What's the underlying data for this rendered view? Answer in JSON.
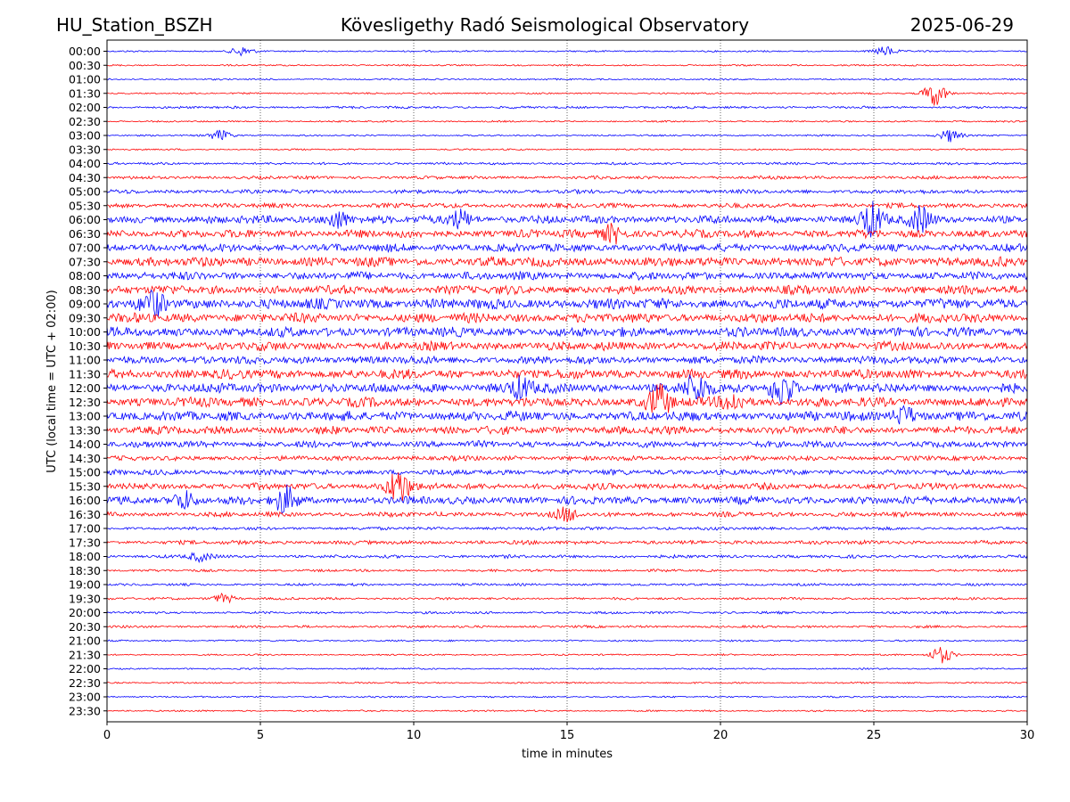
{
  "header": {
    "station": "HU_Station_BSZH",
    "observatory": "Kövesligethy Radó Seismological Observatory",
    "date": "2025-06-29"
  },
  "chart_data": {
    "type": "line",
    "title": "Kövesligethy Radó Seismological Observatory",
    "xlabel": "time in minutes",
    "ylabel": "UTC (local time = UTC + 02:00)",
    "xlim": [
      0,
      30
    ],
    "x_ticks": [
      0,
      5,
      10,
      15,
      20,
      25,
      30
    ],
    "x_tick_labels": [
      "0",
      "5",
      "10",
      "15",
      "20",
      "25",
      "30"
    ],
    "grid": "vertical dotted lines at 5-minute ticks",
    "trace_colors": [
      "#0000ff",
      "#ff0000"
    ],
    "frame_color": "#000000",
    "rows": [
      "00:00",
      "00:30",
      "01:00",
      "01:30",
      "02:00",
      "02:30",
      "03:00",
      "03:30",
      "04:00",
      "04:30",
      "05:00",
      "05:30",
      "06:00",
      "06:30",
      "07:00",
      "07:30",
      "08:00",
      "08:30",
      "09:00",
      "09:30",
      "10:00",
      "10:30",
      "11:00",
      "11:30",
      "12:00",
      "12:30",
      "13:00",
      "13:30",
      "14:00",
      "14:30",
      "15:00",
      "15:30",
      "16:00",
      "16:30",
      "17:00",
      "17:30",
      "18:00",
      "18:30",
      "19:00",
      "19:30",
      "20:00",
      "20:30",
      "21:00",
      "21:30",
      "22:00",
      "22:30",
      "23:00",
      "23:30"
    ],
    "noise_level": [
      1,
      1,
      1,
      1,
      1.5,
      1,
      1,
      1,
      1.5,
      2,
      2.5,
      3,
      5,
      5,
      5,
      6,
      5,
      5.5,
      6.5,
      6,
      6,
      5.5,
      5,
      6,
      6,
      6,
      6,
      5,
      4,
      3,
      3.5,
      4,
      5,
      3,
      2,
      2.5,
      2,
      1.5,
      1.5,
      1.5,
      1.5,
      1.5,
      1,
      1,
      1,
      1,
      1,
      1
    ],
    "events": [
      {
        "row": "00:00",
        "t": 4.4,
        "amp": 5
      },
      {
        "row": "00:00",
        "t": 25.4,
        "amp": 5
      },
      {
        "row": "01:30",
        "t": 27.0,
        "amp": 14
      },
      {
        "row": "03:00",
        "t": 3.7,
        "amp": 6
      },
      {
        "row": "03:00",
        "t": 27.5,
        "amp": 7
      },
      {
        "row": "06:00",
        "t": 7.5,
        "amp": 10
      },
      {
        "row": "06:00",
        "t": 11.5,
        "amp": 10
      },
      {
        "row": "06:00",
        "t": 24.9,
        "amp": 18
      },
      {
        "row": "06:00",
        "t": 26.5,
        "amp": 14
      },
      {
        "row": "06:30",
        "t": 16.5,
        "amp": 10
      },
      {
        "row": "09:00",
        "t": 1.5,
        "amp": 12
      },
      {
        "row": "12:00",
        "t": 13.5,
        "amp": 12
      },
      {
        "row": "12:00",
        "t": 19.2,
        "amp": 16
      },
      {
        "row": "12:00",
        "t": 22.0,
        "amp": 20
      },
      {
        "row": "12:30",
        "t": 18.0,
        "amp": 18
      },
      {
        "row": "12:30",
        "t": 20.4,
        "amp": 10
      },
      {
        "row": "13:00",
        "t": 26.0,
        "amp": 10
      },
      {
        "row": "15:30",
        "t": 9.5,
        "amp": 20
      },
      {
        "row": "16:00",
        "t": 2.5,
        "amp": 10
      },
      {
        "row": "16:00",
        "t": 5.8,
        "amp": 14
      },
      {
        "row": "16:30",
        "t": 15.0,
        "amp": 7
      },
      {
        "row": "18:00",
        "t": 3.0,
        "amp": 5
      },
      {
        "row": "19:30",
        "t": 3.8,
        "amp": 5
      },
      {
        "row": "21:30",
        "t": 27.2,
        "amp": 9
      }
    ]
  }
}
